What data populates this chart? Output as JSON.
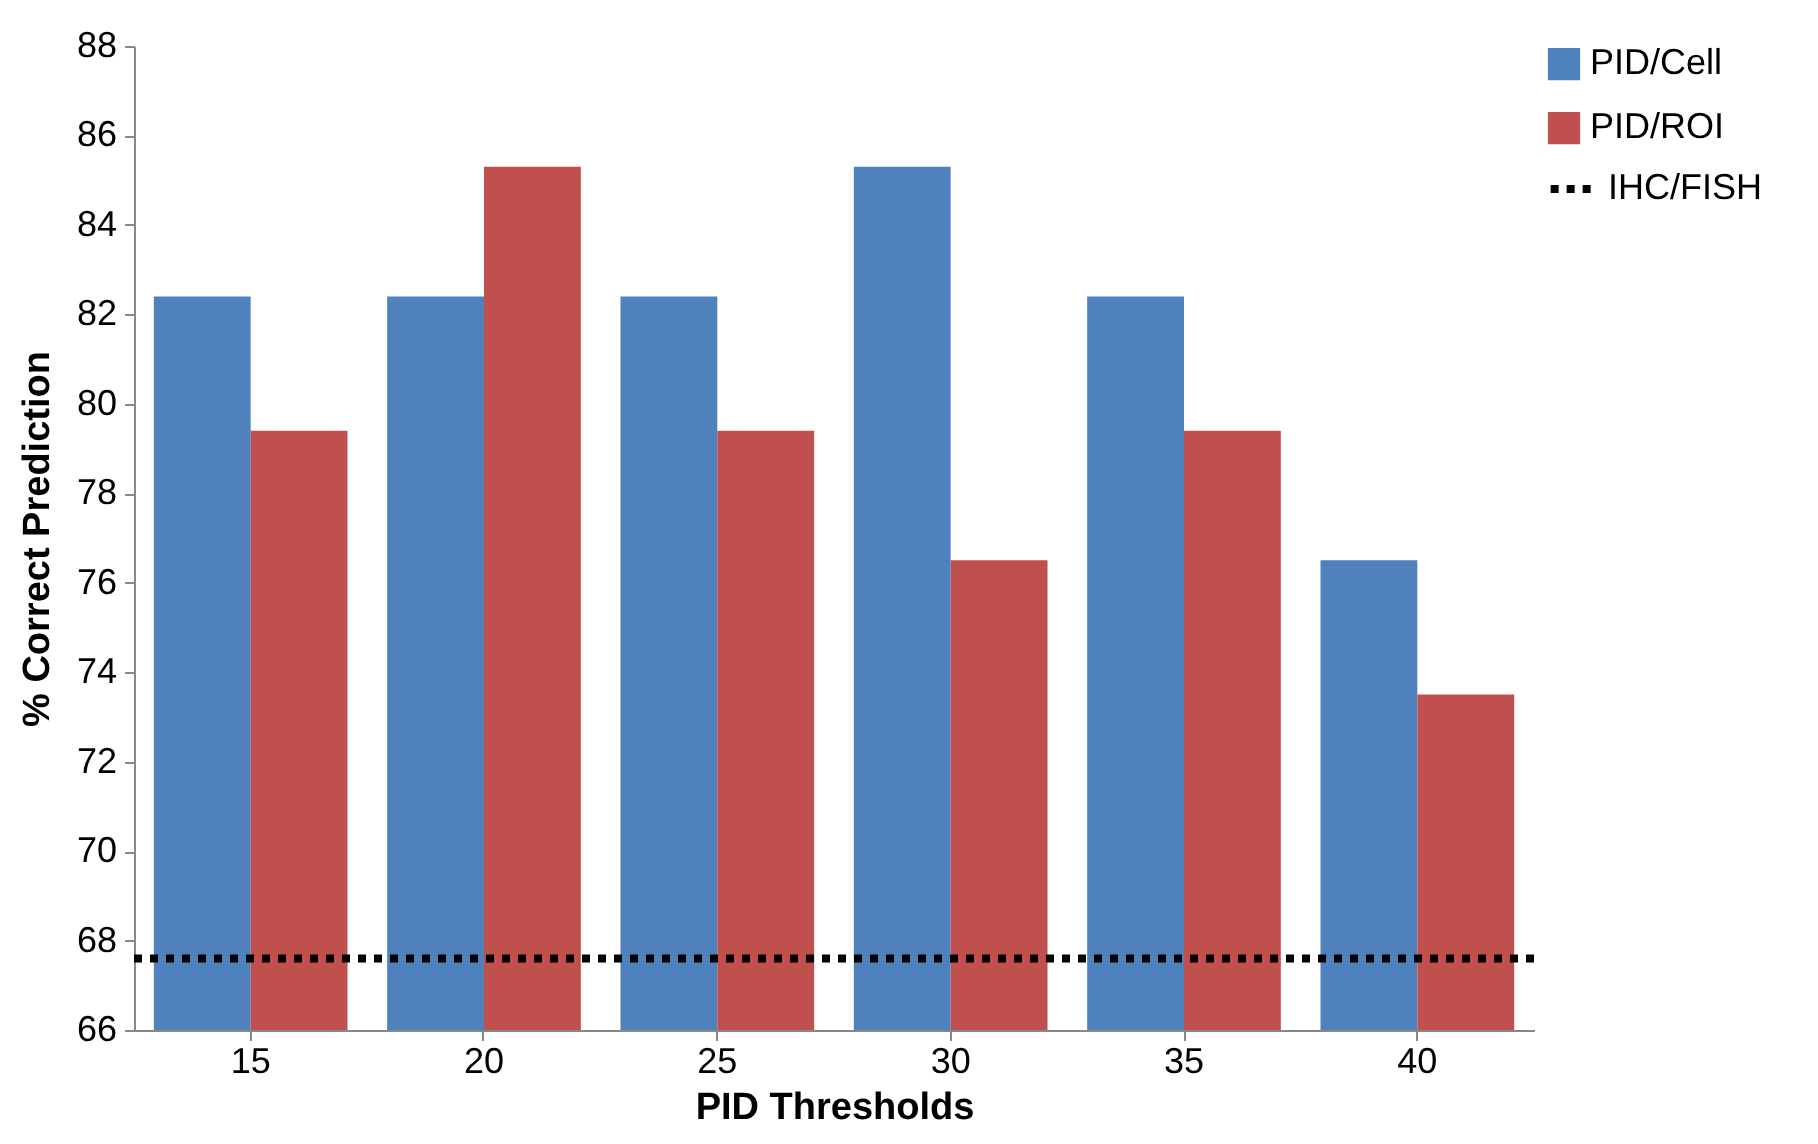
{
  "chart_data": {
    "type": "bar",
    "xlabel": "PID Thresholds",
    "ylabel": "% Correct Prediction",
    "categories": [
      "15",
      "20",
      "25",
      "30",
      "35",
      "40"
    ],
    "series": [
      {
        "name": "PID/Cell",
        "color": "#4f81bd",
        "values": [
          82.4,
          82.4,
          82.4,
          85.3,
          82.4,
          76.5
        ]
      },
      {
        "name": "PID/ROI",
        "color": "#c0504d",
        "values": [
          79.4,
          85.3,
          79.4,
          76.5,
          79.4,
          73.5
        ]
      }
    ],
    "ylim": [
      66,
      88
    ],
    "yticks": [
      66,
      68,
      70,
      72,
      74,
      76,
      78,
      80,
      82,
      84,
      86,
      88
    ],
    "ref_lines": [
      {
        "axis": "y",
        "value": 67.6,
        "label": "IHC/FISH",
        "color": "#000000",
        "line_style": "dotted"
      }
    ],
    "legend": "top right",
    "grid": false
  }
}
